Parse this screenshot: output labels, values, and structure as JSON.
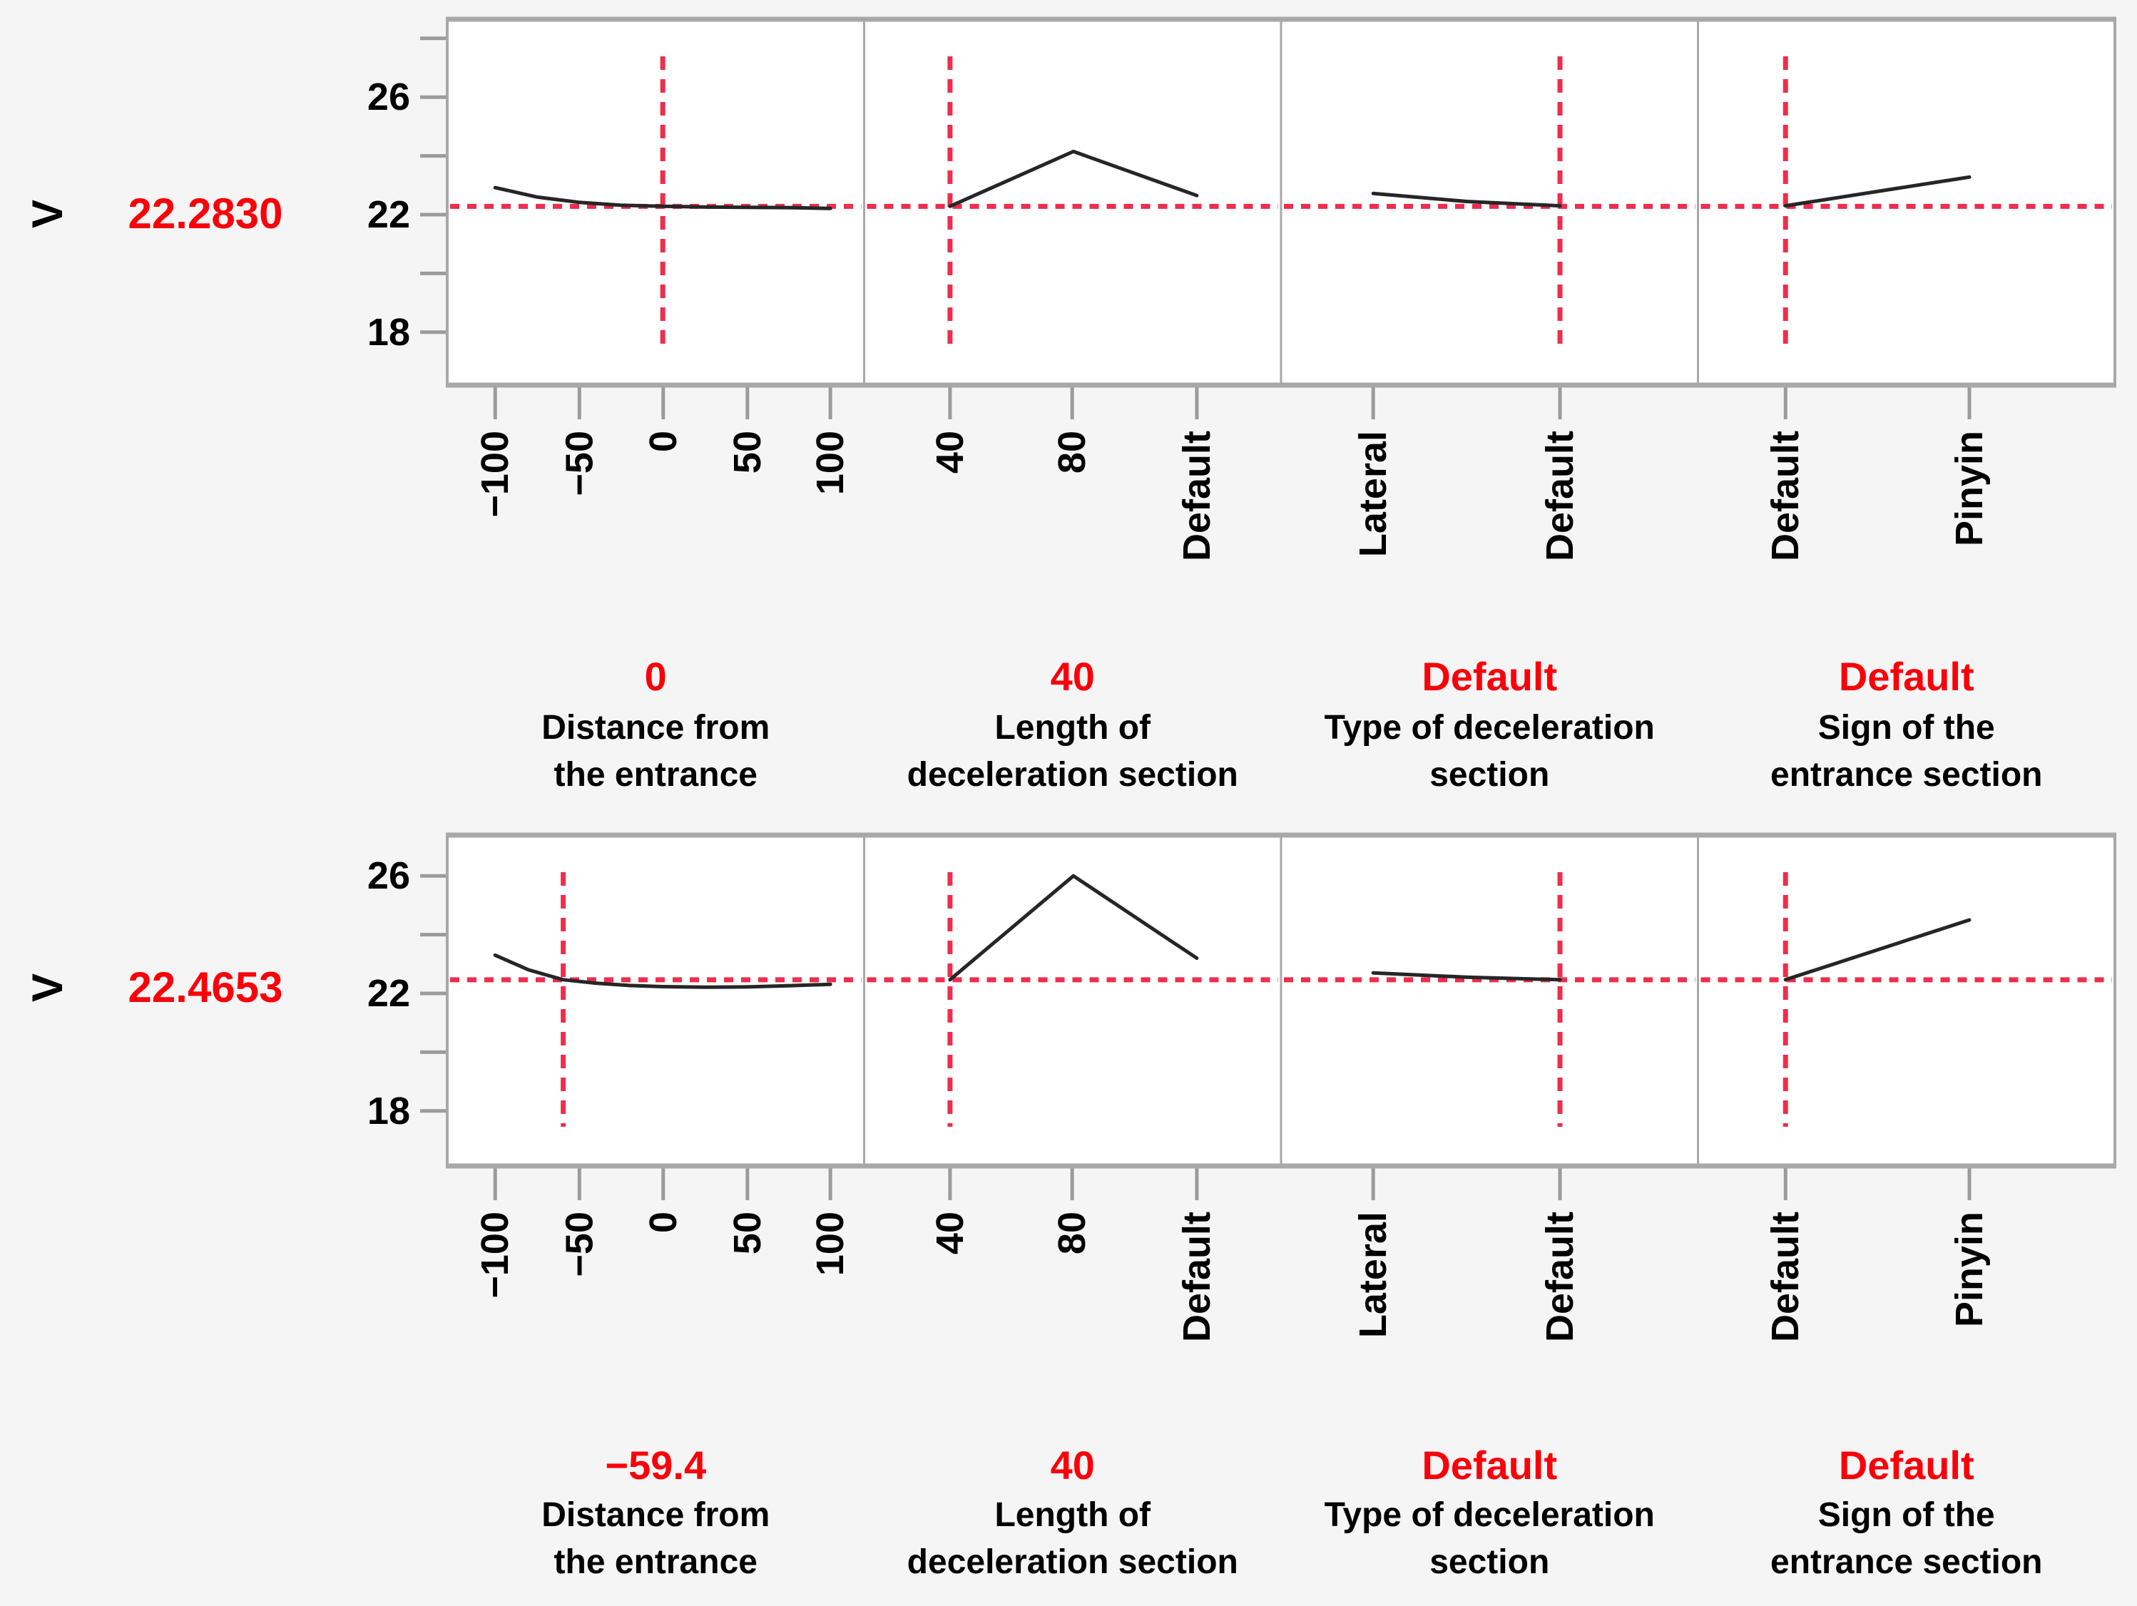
{
  "chart_data": {
    "type": "line",
    "subtype": "prediction-profiler",
    "grid": false,
    "legend": false,
    "colors": {
      "crosshair_dash": "#ee2e4c",
      "value_text": "#fa0109",
      "curve": "#262626",
      "frame": "#a8a8a8",
      "tick": "#9b9b9b",
      "panel_bg": "#ffffff",
      "page_bg": "#f5f5f6",
      "label_text": "#000000"
    },
    "y_axis": {
      "labeled_ticks": [
        "26",
        "22",
        "18"
      ],
      "tick_values": [
        28,
        26,
        24,
        22,
        20,
        18
      ],
      "approx_range": [
        16.2,
        28.9
      ]
    },
    "rows": [
      {
        "response": "V",
        "predicted_label": "22.2830",
        "predicted": 22.283,
        "panels": [
          {
            "name": "Distance from the entrance",
            "label_lines": [
              "Distance from",
              "the entrance"
            ],
            "current_label": "0",
            "current_x": 0,
            "x_type": "numeric",
            "x_range": [
              -100,
              100
            ],
            "x_tick_labels": [
              "−100",
              "−50",
              "0",
              "50",
              "100"
            ],
            "curve": {
              "x": [
                -100,
                -75,
                -50,
                -25,
                0,
                25,
                50,
                75,
                100
              ],
              "y": [
                22.92,
                22.6,
                22.42,
                22.32,
                22.283,
                22.26,
                22.25,
                22.24,
                22.21
              ]
            }
          },
          {
            "name": "Length of deceleration section",
            "label_lines": [
              "Length of",
              "deceleration section"
            ],
            "current_label": "40",
            "current_x": 0,
            "x_type": "categorical",
            "x_tick_labels": [
              "40",
              "80",
              "Default"
            ],
            "curve": {
              "x": [
                0,
                1,
                2
              ],
              "y": [
                22.283,
                24.15,
                22.65
              ]
            }
          },
          {
            "name": "Type of deceleration section",
            "label_lines": [
              "Type of deceleration",
              "section"
            ],
            "current_label": "Default",
            "current_x": 1,
            "x_type": "categorical",
            "x_tick_labels": [
              "Lateral",
              "Default"
            ],
            "curve": {
              "x": [
                0,
                0.5,
                1
              ],
              "y": [
                22.72,
                22.45,
                22.3
              ]
            }
          },
          {
            "name": "Sign of the entrance section",
            "label_lines": [
              "Sign of the",
              "entrance section"
            ],
            "current_label": "Default",
            "current_x": 0,
            "x_type": "categorical",
            "x_tick_labels": [
              "Default",
              "Pinyin"
            ],
            "curve": {
              "x": [
                0,
                1
              ],
              "y": [
                22.3,
                23.28
              ]
            }
          }
        ]
      },
      {
        "response": "V",
        "predicted_label": "22.4653",
        "predicted": 22.4653,
        "panels": [
          {
            "name": "Distance from the entrance",
            "label_lines": [
              "Distance from",
              "the entrance"
            ],
            "current_label": "−59.4",
            "current_x": -59.4,
            "x_type": "numeric",
            "x_range": [
              -100,
              100
            ],
            "x_tick_labels": [
              "−100",
              "−50",
              "0",
              "50",
              "100"
            ],
            "curve": {
              "x": [
                -100,
                -80,
                -59.4,
                -40,
                -20,
                0,
                25,
                50,
                75,
                100
              ],
              "y": [
                23.3,
                22.8,
                22.4653,
                22.35,
                22.27,
                22.23,
                22.21,
                22.22,
                22.26,
                22.31
              ]
            }
          },
          {
            "name": "Length of deceleration section",
            "label_lines": [
              "Length of",
              "deceleration section"
            ],
            "current_label": "40",
            "current_x": 0,
            "x_type": "categorical",
            "x_tick_labels": [
              "40",
              "80",
              "Default"
            ],
            "curve": {
              "x": [
                0,
                1,
                2
              ],
              "y": [
                22.4653,
                26.0,
                23.2
              ]
            }
          },
          {
            "name": "Type of deceleration section",
            "label_lines": [
              "Type of deceleration",
              "section"
            ],
            "current_label": "Default",
            "current_x": 1,
            "x_type": "categorical",
            "x_tick_labels": [
              "Lateral",
              "Default"
            ],
            "curve": {
              "x": [
                0,
                0.5,
                1
              ],
              "y": [
                22.7,
                22.55,
                22.4653
              ]
            }
          },
          {
            "name": "Sign of the entrance section",
            "label_lines": [
              "Sign of the",
              "entrance section"
            ],
            "current_label": "Default",
            "current_x": 0,
            "x_type": "categorical",
            "x_tick_labels": [
              "Default",
              "Pinyin"
            ],
            "curve": {
              "x": [
                0,
                1
              ],
              "y": [
                22.4653,
                24.5
              ]
            }
          }
        ]
      }
    ]
  }
}
